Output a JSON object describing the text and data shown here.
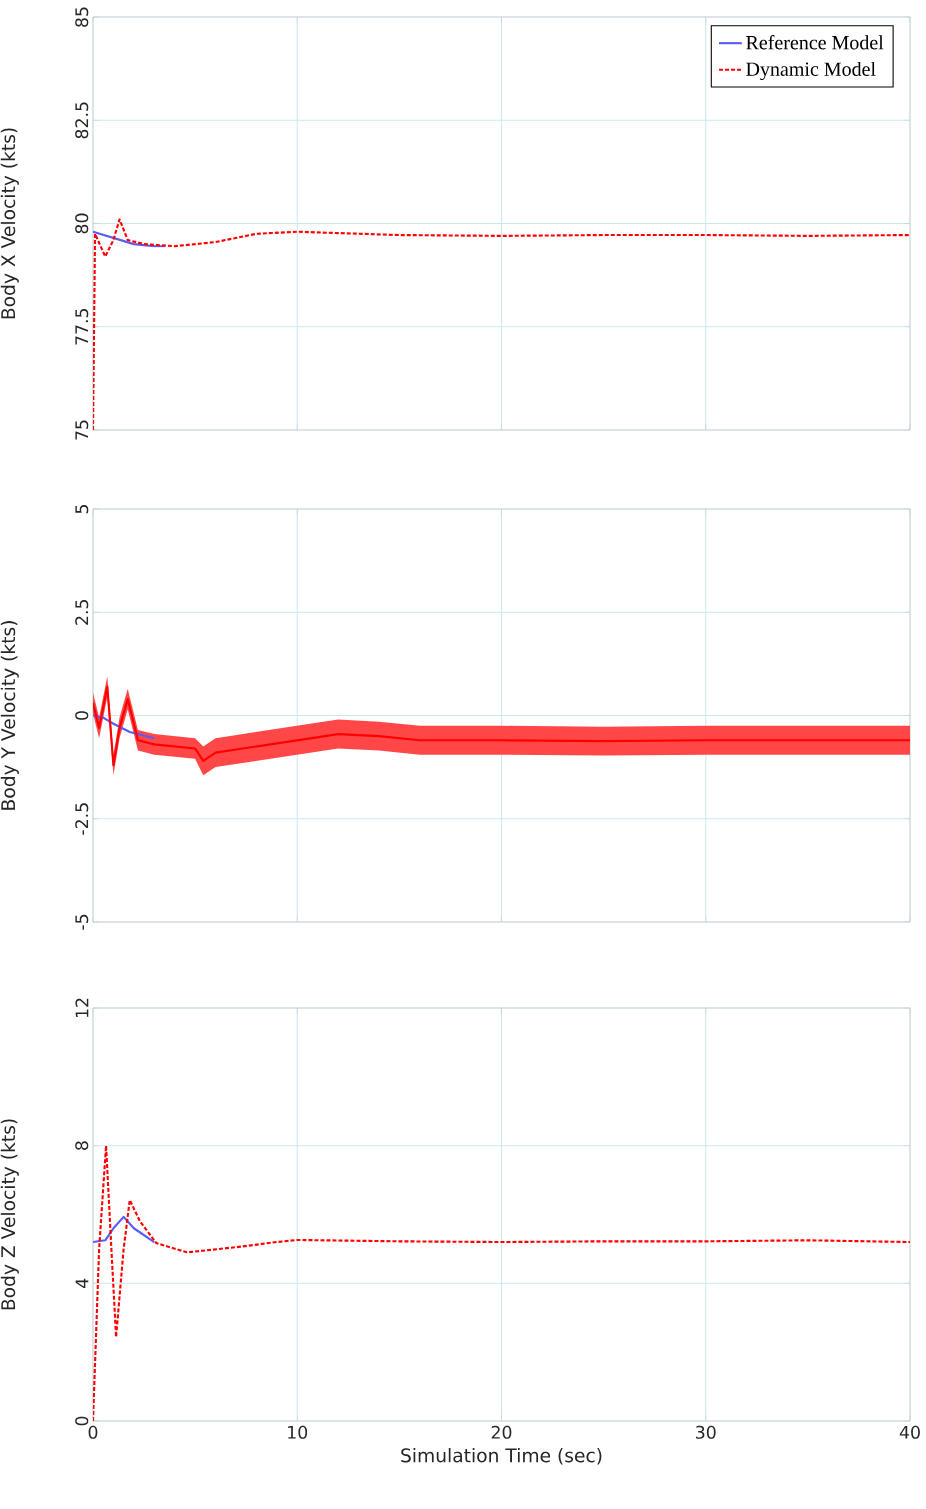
{
  "chart_data": [
    {
      "type": "line",
      "ylabel": "Body X Velocity (kts)",
      "xlim": [
        0,
        40
      ],
      "xticks": [
        0,
        10,
        20,
        30,
        40
      ],
      "ylim": [
        75,
        85
      ],
      "yticks": [
        75,
        77.5,
        80,
        82.5,
        85
      ],
      "grid": true,
      "legend": "top right",
      "tick_labels": "y",
      "series": [
        {
          "name": "Reference Model",
          "color": "#5b5bf5",
          "line_style": "solid",
          "x": [
            0,
            1,
            2,
            3,
            3.5
          ],
          "values": [
            79.8,
            79.65,
            79.5,
            79.45,
            79.45
          ]
        },
        {
          "name": "Dynamic Model",
          "color": "#ff0000",
          "line_style": "dashed",
          "x": [
            0,
            0.1,
            0.6,
            1.0,
            1.3,
            1.7,
            2.5,
            4,
            6,
            8,
            10,
            15,
            20,
            25,
            30,
            35,
            40
          ],
          "values": [
            75,
            79.75,
            79.2,
            79.6,
            80.1,
            79.6,
            79.5,
            79.45,
            79.55,
            79.75,
            79.8,
            79.72,
            79.7,
            79.72,
            79.72,
            79.7,
            79.72
          ]
        }
      ]
    },
    {
      "type": "line",
      "ylabel": "Body Y Velocity (kts)",
      "xlim": [
        0,
        40
      ],
      "xticks": [
        0,
        10,
        20,
        30,
        40
      ],
      "ylim": [
        -5,
        5
      ],
      "yticks": [
        -5,
        -2.5,
        0,
        2.5,
        5
      ],
      "grid": true,
      "tick_labels": "y",
      "series": [
        {
          "color": "#5b5bf5",
          "line_style": "solid",
          "x": [
            0,
            0.5,
            1,
            1.8,
            3
          ],
          "values": [
            0,
            -0.05,
            -0.2,
            -0.4,
            -0.55
          ]
        },
        {
          "color": "#ff0000",
          "line_style": "solid",
          "x": [
            0,
            0.3,
            0.7,
            1.0,
            1.3,
            1.7,
            2.2,
            3,
            4,
            5,
            5.4,
            6,
            8,
            10,
            12,
            14,
            16,
            20,
            25,
            30,
            35,
            40
          ],
          "values": [
            0.3,
            -0.3,
            0.7,
            -1.2,
            -0.3,
            0.4,
            -0.6,
            -0.7,
            -0.75,
            -0.8,
            -1.1,
            -0.9,
            -0.75,
            -0.6,
            -0.45,
            -0.5,
            -0.6,
            -0.6,
            -0.62,
            -0.6,
            -0.6,
            -0.6
          ],
          "lower": [
            0.05,
            -0.55,
            0.45,
            -1.45,
            -0.55,
            0.15,
            -0.85,
            -0.95,
            -1.0,
            -1.05,
            -1.45,
            -1.25,
            -1.1,
            -0.95,
            -0.8,
            -0.85,
            -0.95,
            -0.95,
            -0.97,
            -0.95,
            -0.95,
            -0.95
          ],
          "upper": [
            0.55,
            -0.05,
            0.95,
            -0.95,
            -0.05,
            0.65,
            -0.35,
            -0.45,
            -0.5,
            -0.55,
            -0.75,
            -0.55,
            -0.4,
            -0.25,
            -0.1,
            -0.15,
            -0.25,
            -0.25,
            -0.27,
            -0.25,
            -0.25,
            -0.25
          ]
        }
      ]
    },
    {
      "type": "line",
      "ylabel": "Body Z Velocity (kts)",
      "xlabel": "Simulation Time (sec)",
      "xlim": [
        0,
        40
      ],
      "xticks": [
        0,
        10,
        20,
        30,
        40
      ],
      "ylim": [
        0,
        12
      ],
      "yticks": [
        0,
        4,
        8,
        12
      ],
      "grid": true,
      "series": [
        {
          "color": "#5b5bf5",
          "line_style": "solid",
          "x": [
            0,
            0.6,
            1.0,
            1.5,
            2,
            3
          ],
          "values": [
            5.2,
            5.25,
            5.6,
            5.93,
            5.6,
            5.2
          ]
        },
        {
          "color": "#ff0000",
          "line_style": "dashed",
          "x": [
            0,
            0.3,
            0.64,
            0.9,
            1.13,
            1.5,
            1.8,
            2.3,
            3.1,
            4.6,
            7,
            9,
            10,
            15,
            20,
            25,
            30,
            35,
            40
          ],
          "values": [
            0,
            5,
            8.0,
            5,
            2.44,
            5,
            6.42,
            5.8,
            5.17,
            4.9,
            5.05,
            5.2,
            5.26,
            5.22,
            5.2,
            5.22,
            5.22,
            5.25,
            5.2
          ]
        }
      ]
    }
  ]
}
